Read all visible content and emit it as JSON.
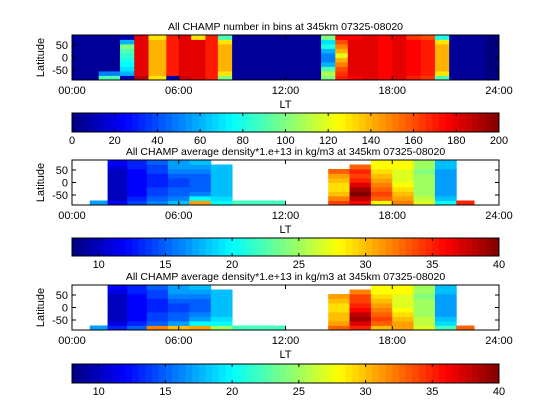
{
  "colors": {
    "frame": "#000000",
    "missing": "#ffffff"
  },
  "colormap": "jet",
  "chart_data": [
    {
      "type": "heatmap",
      "title": "All CHAMP number in bins at 345km 07325-08020",
      "xlabel": "LT",
      "ylabel": "Latitude",
      "xlim": [
        0,
        24
      ],
      "ylim": [
        -90,
        90
      ],
      "xticks": [
        "00:00",
        "06:00",
        "12:00",
        "18:00",
        "24:00"
      ],
      "yticks": [
        "50",
        "0",
        "-50"
      ],
      "clim": [
        0,
        200
      ],
      "colorbar_ticks": [
        "0",
        "20",
        "40",
        "60",
        "80",
        "100",
        "120",
        "140",
        "160",
        "180",
        "200"
      ],
      "background": "#000080",
      "columns": [
        {
          "lt": [
            0.0,
            1.5
          ],
          "vals": [
            5,
            5,
            5,
            5,
            5,
            5,
            5,
            5,
            5,
            5
          ]
        },
        {
          "lt": [
            1.5,
            2.7
          ],
          "vals": [
            90,
            50,
            5,
            5,
            5,
            5,
            5,
            5,
            5,
            5
          ]
        },
        {
          "lt": [
            2.7,
            3.5
          ],
          "vals": [
            10,
            60,
            70,
            75,
            80,
            85,
            90,
            100,
            60,
            10
          ]
        },
        {
          "lt": [
            3.5,
            4.3
          ],
          "vals": [
            190,
            180,
            180,
            180,
            180,
            180,
            180,
            180,
            180,
            180
          ]
        },
        {
          "lt": [
            4.3,
            5.3
          ],
          "vals": [
            130,
            140,
            140,
            140,
            140,
            140,
            140,
            140,
            140,
            130
          ]
        },
        {
          "lt": [
            5.3,
            6.0
          ],
          "vals": [
            10,
            170,
            170,
            170,
            170,
            170,
            170,
            170,
            170,
            170
          ]
        },
        {
          "lt": [
            6.0,
            6.7
          ],
          "vals": [
            185,
            180,
            180,
            180,
            180,
            180,
            180,
            180,
            180,
            180
          ]
        },
        {
          "lt": [
            6.7,
            7.5
          ],
          "vals": [
            180,
            180,
            180,
            180,
            180,
            180,
            180,
            180,
            180,
            130
          ]
        },
        {
          "lt": [
            7.5,
            8.2
          ],
          "vals": [
            170,
            170,
            170,
            170,
            170,
            170,
            170,
            170,
            170,
            170
          ]
        },
        {
          "lt": [
            8.2,
            9.0
          ],
          "vals": [
            100,
            130,
            140,
            140,
            140,
            140,
            140,
            140,
            130,
            90
          ]
        },
        {
          "lt": [
            9.0,
            14.0
          ],
          "vals": [
            5,
            5,
            5,
            5,
            5,
            5,
            5,
            5,
            5,
            5
          ]
        },
        {
          "lt": [
            14.0,
            14.8
          ],
          "vals": [
            100,
            110,
            90,
            60,
            50,
            50,
            60,
            80,
            70,
            100
          ]
        },
        {
          "lt": [
            14.8,
            15.5
          ],
          "vals": [
            170,
            165,
            160,
            150,
            140,
            120,
            140,
            150,
            160,
            175
          ]
        },
        {
          "lt": [
            15.5,
            16.3
          ],
          "vals": [
            175,
            180,
            180,
            180,
            180,
            180,
            180,
            180,
            180,
            175
          ]
        },
        {
          "lt": [
            16.3,
            17.2
          ],
          "vals": [
            180,
            180,
            180,
            180,
            180,
            180,
            180,
            180,
            180,
            180
          ]
        },
        {
          "lt": [
            17.2,
            18.0
          ],
          "vals": [
            175,
            175,
            175,
            175,
            175,
            175,
            175,
            175,
            175,
            175
          ]
        },
        {
          "lt": [
            18.0,
            18.8
          ],
          "vals": [
            180,
            180,
            180,
            180,
            180,
            180,
            180,
            180,
            180,
            180
          ]
        },
        {
          "lt": [
            18.8,
            19.6
          ],
          "vals": [
            170,
            175,
            175,
            175,
            175,
            175,
            175,
            175,
            175,
            165
          ]
        },
        {
          "lt": [
            19.6,
            20.4
          ],
          "vals": [
            165,
            170,
            170,
            170,
            170,
            170,
            170,
            170,
            170,
            160
          ]
        },
        {
          "lt": [
            20.4,
            21.2
          ],
          "vals": [
            90,
            130,
            140,
            140,
            140,
            140,
            140,
            140,
            130,
            80
          ]
        },
        {
          "lt": [
            21.2,
            23.2
          ],
          "vals": [
            5,
            5,
            5,
            5,
            5,
            5,
            5,
            5,
            5,
            5
          ]
        },
        {
          "lt": [
            23.2,
            24.0
          ],
          "vals": [
            null,
            null,
            null,
            null,
            null,
            null,
            null,
            null,
            null,
            null
          ]
        }
      ]
    },
    {
      "type": "heatmap",
      "title": "All CHAMP average density*1.e+13 in kg/m3 at 345km 07325-08020",
      "xlabel": "LT",
      "ylabel": "Latitude",
      "xlim": [
        0,
        24
      ],
      "ylim": [
        -90,
        90
      ],
      "xticks": [
        "00:00",
        "06:00",
        "12:00",
        "18:00",
        "24:00"
      ],
      "yticks": [
        "50",
        "0",
        "-50"
      ],
      "clim": [
        8,
        40
      ],
      "colorbar_ticks": [
        "10",
        "15",
        "20",
        "25",
        "30",
        "35"
      ],
      "colorbar_end_labels": [
        "",
        "40"
      ],
      "background": "#ffffff",
      "columns": [
        {
          "lt": [
            1.0,
            2.0
          ],
          "vals": [
            17,
            null,
            null,
            null,
            null,
            null,
            null,
            null,
            null,
            null
          ]
        },
        {
          "lt": [
            2.0,
            3.1
          ],
          "vals": [
            12,
            10,
            10,
            10,
            10,
            10,
            10,
            10,
            11,
            12
          ]
        },
        {
          "lt": [
            3.1,
            4.2
          ],
          "vals": [
            14,
            13,
            12,
            12,
            12,
            12,
            12,
            12,
            13,
            13
          ]
        },
        {
          "lt": [
            4.2,
            5.4
          ],
          "vals": [
            16,
            15,
            14,
            14,
            13,
            13,
            13,
            14,
            14,
            15
          ]
        },
        {
          "lt": [
            5.4,
            6.6
          ],
          "vals": [
            18,
            16,
            15,
            15,
            14,
            14,
            15,
            16,
            17,
            17
          ]
        },
        {
          "lt": [
            6.6,
            7.8
          ],
          "vals": [
            31,
            20,
            16,
            15,
            15,
            15,
            15,
            16,
            17,
            18
          ]
        },
        {
          "lt": [
            7.8,
            9.0
          ],
          "vals": [
            20,
            19,
            18,
            18,
            18,
            18,
            18,
            18,
            18,
            null
          ]
        },
        {
          "lt": [
            9.0,
            12.0
          ],
          "vals": [
            22,
            null,
            null,
            null,
            null,
            null,
            null,
            null,
            null,
            null
          ]
        },
        {
          "lt": [
            12.0,
            14.4
          ],
          "vals": [
            null,
            null,
            null,
            null,
            null,
            null,
            null,
            null,
            null,
            null
          ]
        },
        {
          "lt": [
            14.4,
            15.6
          ],
          "vals": [
            34,
            32,
            30,
            29,
            29,
            30,
            31,
            33,
            null,
            null
          ]
        },
        {
          "lt": [
            15.6,
            16.8
          ],
          "vals": [
            36,
            38,
            40,
            39,
            37,
            35,
            34,
            35,
            33,
            null
          ]
        },
        {
          "lt": [
            16.8,
            18.0
          ],
          "vals": [
            28,
            33,
            34,
            33,
            32,
            31,
            30,
            29,
            28,
            28
          ]
        },
        {
          "lt": [
            18.0,
            19.2
          ],
          "vals": [
            32,
            31,
            30,
            29,
            28,
            27,
            27,
            27,
            28,
            28
          ]
        },
        {
          "lt": [
            19.2,
            20.4
          ],
          "vals": [
            27,
            26,
            25,
            25,
            25,
            25,
            25,
            24,
            25,
            25
          ]
        },
        {
          "lt": [
            20.4,
            21.6
          ],
          "vals": [
            20,
            18,
            17,
            17,
            17,
            17,
            17,
            17,
            18,
            18
          ]
        },
        {
          "lt": [
            21.6,
            22.6
          ],
          "vals": [
            35,
            null,
            null,
            null,
            null,
            null,
            null,
            null,
            null,
            null
          ]
        }
      ]
    },
    {
      "type": "heatmap",
      "title": "All CHAMP average density*1.e+13 in kg/m3 at 345km 07325-08020",
      "xlabel": "LT",
      "ylabel": "Latitude",
      "xlim": [
        0,
        24
      ],
      "ylim": [
        -90,
        90
      ],
      "xticks": [
        "00:00",
        "06:00",
        "12:00",
        "18:00",
        "24:00"
      ],
      "yticks": [
        "50",
        "0",
        "-50"
      ],
      "clim": [
        8,
        40
      ],
      "colorbar_ticks": [
        "10",
        "15",
        "20",
        "25",
        "30",
        "35",
        "40"
      ],
      "background": "#ffffff",
      "smooth": true,
      "columns": [
        {
          "lt": [
            1.0,
            2.0
          ],
          "vals": [
            17,
            null,
            null,
            null,
            null,
            null,
            null,
            null,
            null,
            null
          ]
        },
        {
          "lt": [
            2.0,
            3.1
          ],
          "vals": [
            13,
            11,
            10,
            10,
            10,
            10,
            10,
            10,
            11,
            12
          ]
        },
        {
          "lt": [
            3.1,
            4.2
          ],
          "vals": [
            15,
            13,
            12,
            12,
            12,
            12,
            12,
            12,
            13,
            13
          ]
        },
        {
          "lt": [
            4.2,
            5.4
          ],
          "vals": [
            32,
            15,
            14,
            14,
            13,
            13,
            13,
            14,
            14,
            15
          ]
        },
        {
          "lt": [
            5.4,
            6.6
          ],
          "vals": [
            30,
            17,
            15,
            15,
            14,
            14,
            15,
            16,
            17,
            17
          ]
        },
        {
          "lt": [
            6.6,
            7.8
          ],
          "vals": [
            31,
            20,
            17,
            16,
            15,
            15,
            15,
            16,
            17,
            18
          ]
        },
        {
          "lt": [
            7.8,
            9.0
          ],
          "vals": [
            25,
            20,
            19,
            18,
            18,
            18,
            18,
            18,
            18,
            null
          ]
        },
        {
          "lt": [
            9.0,
            12.0
          ],
          "vals": [
            22,
            null,
            null,
            null,
            null,
            null,
            null,
            null,
            null,
            null
          ]
        },
        {
          "lt": [
            12.0,
            14.4
          ],
          "vals": [
            null,
            null,
            null,
            null,
            null,
            null,
            null,
            null,
            null,
            null
          ]
        },
        {
          "lt": [
            14.4,
            15.6
          ],
          "vals": [
            33,
            31,
            30,
            30,
            29,
            29,
            30,
            31,
            null,
            null
          ]
        },
        {
          "lt": [
            15.6,
            16.8
          ],
          "vals": [
            35,
            37,
            39,
            38,
            36,
            35,
            34,
            34,
            32,
            null
          ]
        },
        {
          "lt": [
            16.8,
            18.0
          ],
          "vals": [
            30,
            33,
            34,
            33,
            32,
            31,
            30,
            29,
            28,
            28
          ]
        },
        {
          "lt": [
            18.0,
            19.2
          ],
          "vals": [
            31,
            31,
            30,
            29,
            28,
            27,
            27,
            27,
            28,
            28
          ]
        },
        {
          "lt": [
            19.2,
            20.4
          ],
          "vals": [
            27,
            26,
            26,
            25,
            25,
            25,
            25,
            24,
            25,
            25
          ]
        },
        {
          "lt": [
            20.4,
            21.6
          ],
          "vals": [
            22,
            19,
            18,
            17,
            17,
            17,
            17,
            17,
            18,
            18
          ]
        },
        {
          "lt": [
            21.6,
            22.6
          ],
          "vals": [
            33,
            null,
            null,
            null,
            null,
            null,
            null,
            null,
            null,
            null
          ]
        }
      ]
    }
  ]
}
